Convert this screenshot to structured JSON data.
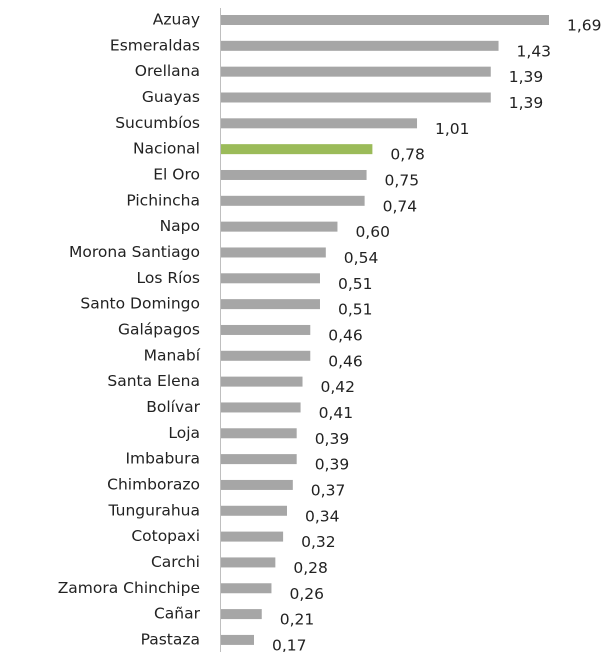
{
  "chart_data": {
    "type": "hbar",
    "categories": [
      "Azuay",
      "Esmeraldas",
      "Orellana",
      "Guayas",
      "Sucumbíos",
      "Nacional",
      "El Oro",
      "Pichincha",
      "Napo",
      "Morona Santiago",
      "Los Ríos",
      "Santo Domingo",
      "Galápagos",
      "Manabí",
      "Santa Elena",
      "Bolívar",
      "Loja",
      "Imbabura",
      "Chimborazo",
      "Tungurahua",
      "Cotopaxi",
      "Carchi",
      "Zamora Chinchipe",
      "Cañar",
      "Pastaza"
    ],
    "values": [
      1.69,
      1.43,
      1.39,
      1.39,
      1.01,
      0.78,
      0.75,
      0.74,
      0.6,
      0.54,
      0.51,
      0.51,
      0.46,
      0.46,
      0.42,
      0.41,
      0.39,
      0.39,
      0.37,
      0.34,
      0.32,
      0.28,
      0.26,
      0.21,
      0.17
    ],
    "value_labels": [
      "1,69",
      "1,43",
      "1,39",
      "1,39",
      "1,01",
      "0,78",
      "0,75",
      "0,74",
      "0,60",
      "0,54",
      "0,51",
      "0,51",
      "0,46",
      "0,46",
      "0,42",
      "0,41",
      "0,39",
      "0,39",
      "0,37",
      "0,34",
      "0,32",
      "0,28",
      "0,26",
      "0,21",
      "0,17"
    ],
    "colors": [
      "#a6a6a6",
      "#a6a6a6",
      "#a6a6a6",
      "#a6a6a6",
      "#a6a6a6",
      "#9bbb59",
      "#a6a6a6",
      "#a6a6a6",
      "#a6a6a6",
      "#a6a6a6",
      "#a6a6a6",
      "#a6a6a6",
      "#a6a6a6",
      "#a6a6a6",
      "#a6a6a6",
      "#a6a6a6",
      "#a6a6a6",
      "#a6a6a6",
      "#a6a6a6",
      "#a6a6a6",
      "#a6a6a6",
      "#a6a6a6",
      "#a6a6a6",
      "#a6a6a6",
      "#a6a6a6"
    ]
  }
}
